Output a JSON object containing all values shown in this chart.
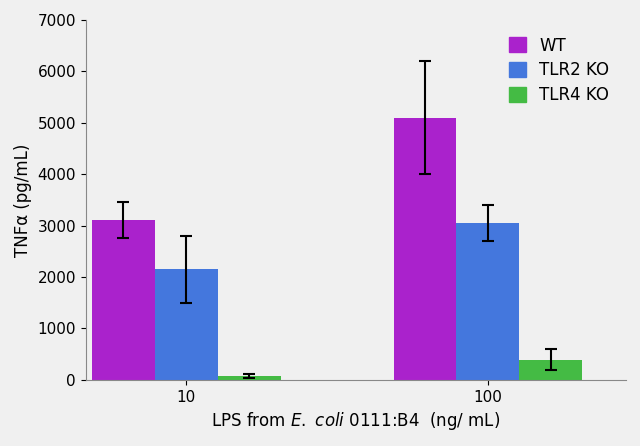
{
  "groups": [
    "10",
    "100"
  ],
  "series": [
    "WT",
    "TLR2 KO",
    "TLR4 KO"
  ],
  "values": [
    [
      3100,
      2150,
      75
    ],
    [
      5100,
      3050,
      390
    ]
  ],
  "errors": [
    [
      350,
      650,
      40
    ],
    [
      1100,
      350,
      200
    ]
  ],
  "colors": [
    "#AA22CC",
    "#4477DD",
    "#44BB44"
  ],
  "ylabel": "TNFα (pg/mL)",
  "ylim": [
    0,
    7000
  ],
  "yticks": [
    0,
    1000,
    2000,
    3000,
    4000,
    5000,
    6000,
    7000
  ],
  "legend_labels": [
    "WT",
    "TLR2 KO",
    "TLR4 KO"
  ],
  "bar_width": 0.25,
  "group_positions": [
    1.0,
    2.2
  ],
  "axis_fontsize": 12,
  "tick_fontsize": 11,
  "xlim": [
    0.6,
    2.75
  ]
}
